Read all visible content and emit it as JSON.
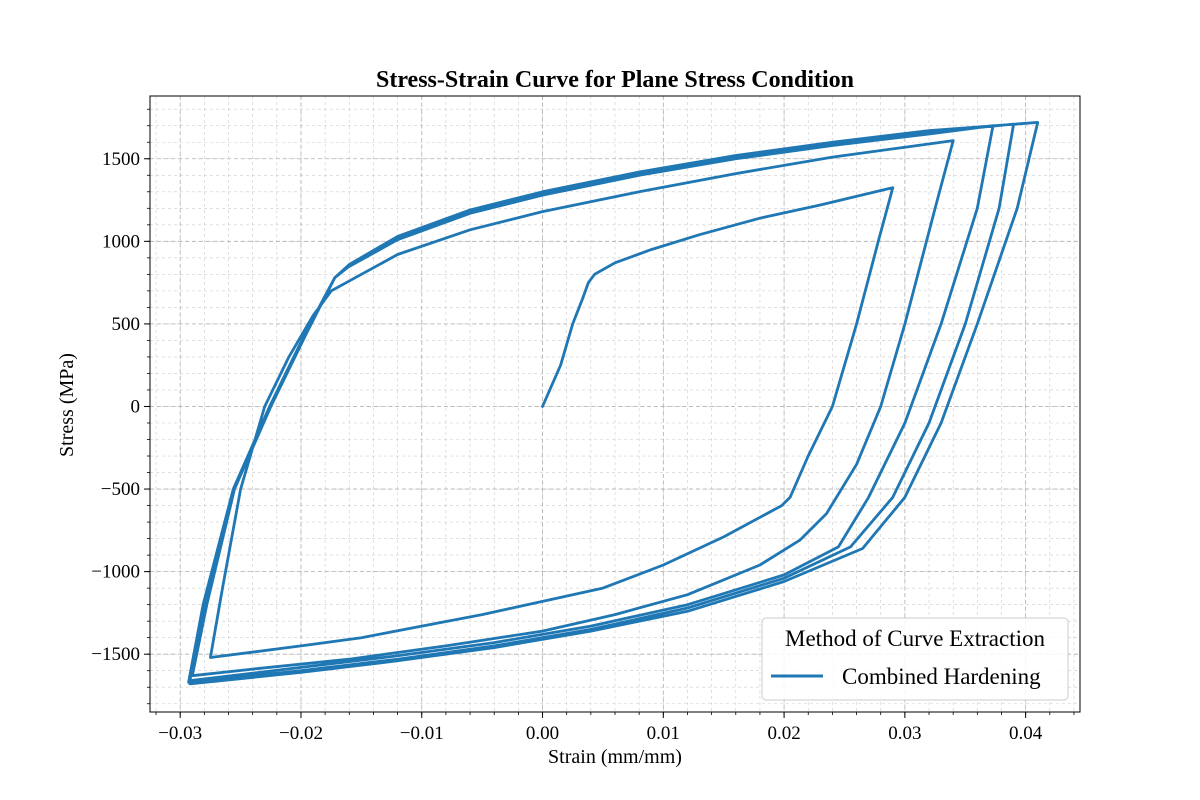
{
  "chart_data": {
    "type": "line",
    "title": "Stress-Strain Curve for Plane Stress Condition",
    "xlabel": "Strain (mm/mm)",
    "ylabel": "Stress (MPa)",
    "xlim": [
      -0.0325,
      0.0445
    ],
    "ylim": [
      -1850,
      1880
    ],
    "xticks": [
      -0.03,
      -0.02,
      -0.01,
      0.0,
      0.01,
      0.02,
      0.03,
      0.04
    ],
    "xtick_labels": [
      "−0.03",
      "−0.02",
      "−0.01",
      "0.00",
      "0.01",
      "0.02",
      "0.03",
      "0.04"
    ],
    "yticks": [
      -1500,
      -1000,
      -500,
      0,
      500,
      1000,
      1500
    ],
    "ytick_labels": [
      "−1500",
      "−1000",
      "−500",
      "0",
      "500",
      "1000",
      "1500"
    ],
    "grid": true,
    "minor_grid": true,
    "legend": {
      "title": "Method of Curve Extraction",
      "placement": "lower-right"
    },
    "series": [
      {
        "name": "Combined Hardening",
        "color": "#1f77b4",
        "x": [
          0.0,
          0.0015,
          0.0025,
          0.0033,
          0.0038,
          0.0043,
          0.006,
          0.009,
          0.013,
          0.018,
          0.023,
          0.029,
          0.0278,
          0.026,
          0.024,
          0.022,
          0.0205,
          0.0198,
          0.015,
          0.01,
          0.005,
          0.0,
          -0.005,
          -0.01,
          -0.015,
          -0.02,
          -0.0275,
          -0.0265,
          -0.025,
          -0.023,
          -0.021,
          -0.019,
          -0.0175,
          -0.0165,
          -0.012,
          -0.006,
          0.0,
          0.008,
          0.016,
          0.024,
          0.03,
          0.034,
          0.0325,
          0.03,
          0.028,
          0.026,
          0.0235,
          0.0213,
          0.018,
          0.012,
          0.006,
          0.0,
          -0.008,
          -0.016,
          -0.024,
          -0.029,
          -0.0278,
          -0.0255,
          -0.0225,
          -0.0195,
          -0.0172,
          -0.0162,
          -0.012,
          -0.006,
          0.0,
          0.008,
          0.016,
          0.024,
          0.032,
          0.0373,
          0.036,
          0.033,
          0.03,
          0.027,
          0.0245,
          0.02,
          0.012,
          0.004,
          -0.004,
          -0.012,
          -0.02,
          -0.0292,
          -0.028,
          -0.0255,
          -0.0225,
          -0.0195,
          -0.0172,
          -0.016,
          -0.012,
          -0.006,
          0.0,
          0.008,
          0.016,
          0.024,
          0.032,
          0.039,
          0.0378,
          0.035,
          0.032,
          0.029,
          0.0255,
          0.02,
          0.012,
          0.004,
          -0.004,
          -0.012,
          -0.02,
          -0.0293,
          -0.0281,
          -0.0256,
          -0.0226,
          -0.0196,
          -0.0172,
          -0.016,
          -0.012,
          -0.006,
          0.0,
          0.008,
          0.016,
          0.024,
          0.032,
          0.041,
          0.0393,
          0.036,
          0.033,
          0.03,
          0.0265,
          0.02,
          0.012,
          0.004,
          -0.004,
          -0.012,
          -0.02,
          -0.0292
        ],
        "y": [
          0,
          250,
          500,
          650,
          750,
          800,
          870,
          950,
          1040,
          1140,
          1220,
          1325,
          1000,
          500,
          0,
          -300,
          -550,
          -600,
          -790,
          -960,
          -1100,
          -1180,
          -1260,
          -1330,
          -1400,
          -1450,
          -1520,
          -1100,
          -500,
          0,
          300,
          550,
          700,
          740,
          920,
          1070,
          1180,
          1300,
          1410,
          1510,
          1570,
          1610,
          1200,
          500,
          0,
          -350,
          -650,
          -810,
          -960,
          -1140,
          -1260,
          -1360,
          -1450,
          -1530,
          -1590,
          -1630,
          -1200,
          -500,
          0,
          450,
          780,
          840,
          1010,
          1170,
          1280,
          1400,
          1500,
          1580,
          1650,
          1700,
          1200,
          500,
          -100,
          -550,
          -850,
          -1020,
          -1200,
          -1330,
          -1430,
          -1510,
          -1580,
          -1660,
          -1200,
          -500,
          0,
          450,
          780,
          850,
          1020,
          1180,
          1290,
          1410,
          1510,
          1590,
          1660,
          1710,
          1200,
          500,
          -100,
          -550,
          -850,
          -1040,
          -1220,
          -1350,
          -1450,
          -1530,
          -1600,
          -1670,
          -1200,
          -500,
          0,
          450,
          780,
          860,
          1030,
          1190,
          1300,
          1420,
          1520,
          1600,
          1670,
          1720,
          1200,
          500,
          -100,
          -550,
          -860,
          -1060,
          -1240,
          -1360,
          -1460,
          -1540,
          -1610,
          -1680
        ]
      }
    ]
  }
}
